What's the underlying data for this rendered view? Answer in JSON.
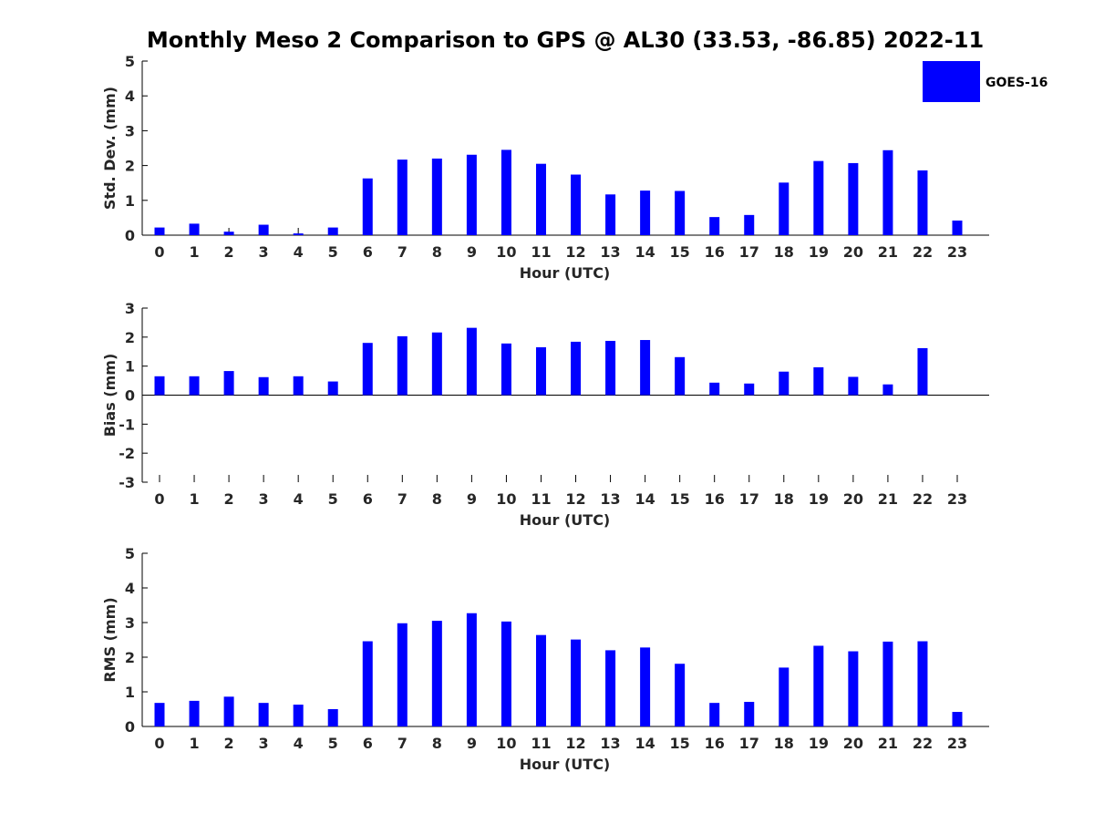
{
  "figure_title": "Monthly Meso 2 Comparison to GPS @ AL30 (33.53, -86.85) 2022-11",
  "legend_label": "GOES-16",
  "colors": {
    "bar": "#0000ff",
    "axis": "#000000",
    "tick_text": "#262626"
  },
  "chart_data": [
    {
      "type": "bar",
      "name": "std-dev",
      "title": "",
      "xlabel": "Hour (UTC)",
      "ylabel": "Std. Dev. (mm)",
      "ylim": [
        0,
        5
      ],
      "yticks": [
        0,
        1,
        2,
        3,
        4,
        5
      ],
      "categories": [
        "0",
        "1",
        "2",
        "3",
        "4",
        "5",
        "6",
        "7",
        "8",
        "9",
        "10",
        "11",
        "12",
        "13",
        "14",
        "15",
        "16",
        "17",
        "18",
        "19",
        "20",
        "21",
        "22",
        "23"
      ],
      "series": [
        {
          "name": "GOES-16",
          "values": [
            0.22,
            0.33,
            0.1,
            0.3,
            0.05,
            0.22,
            1.63,
            2.17,
            2.2,
            2.31,
            2.45,
            2.05,
            1.74,
            1.17,
            1.28,
            1.27,
            0.52,
            0.58,
            1.51,
            2.13,
            2.07,
            2.44,
            1.86,
            0.42
          ]
        }
      ],
      "grid": false,
      "legend": "top-right"
    },
    {
      "type": "bar",
      "name": "bias",
      "title": "",
      "xlabel": "Hour (UTC)",
      "ylabel": "Bias (mm)",
      "ylim": [
        -3,
        3
      ],
      "yticks": [
        -3,
        -2,
        -1,
        0,
        1,
        2,
        3
      ],
      "categories": [
        "0",
        "1",
        "2",
        "3",
        "4",
        "5",
        "6",
        "7",
        "8",
        "9",
        "10",
        "11",
        "12",
        "13",
        "14",
        "15",
        "16",
        "17",
        "18",
        "19",
        "20",
        "21",
        "22",
        "23"
      ],
      "series": [
        {
          "name": "GOES-16",
          "values": [
            0.65,
            0.65,
            0.83,
            0.62,
            0.65,
            0.47,
            1.8,
            2.03,
            2.16,
            2.32,
            1.78,
            1.65,
            1.84,
            1.87,
            1.9,
            1.31,
            0.43,
            0.4,
            0.81,
            0.96,
            0.63,
            0.37,
            1.62,
            0.0
          ]
        }
      ],
      "grid": false
    },
    {
      "type": "bar",
      "name": "rms",
      "title": "",
      "xlabel": "Hour (UTC)",
      "ylabel": "RMS (mm)",
      "ylim": [
        0,
        5
      ],
      "yticks": [
        0,
        1,
        2,
        3,
        4,
        5
      ],
      "categories": [
        "0",
        "1",
        "2",
        "3",
        "4",
        "5",
        "6",
        "7",
        "8",
        "9",
        "10",
        "11",
        "12",
        "13",
        "14",
        "15",
        "16",
        "17",
        "18",
        "19",
        "20",
        "21",
        "22",
        "23"
      ],
      "series": [
        {
          "name": "GOES-16",
          "values": [
            0.68,
            0.74,
            0.86,
            0.68,
            0.63,
            0.5,
            2.46,
            2.98,
            3.05,
            3.27,
            3.03,
            2.64,
            2.51,
            2.2,
            2.28,
            1.81,
            0.68,
            0.71,
            1.7,
            2.33,
            2.17,
            2.45,
            2.46,
            0.42
          ]
        }
      ],
      "grid": false
    }
  ]
}
